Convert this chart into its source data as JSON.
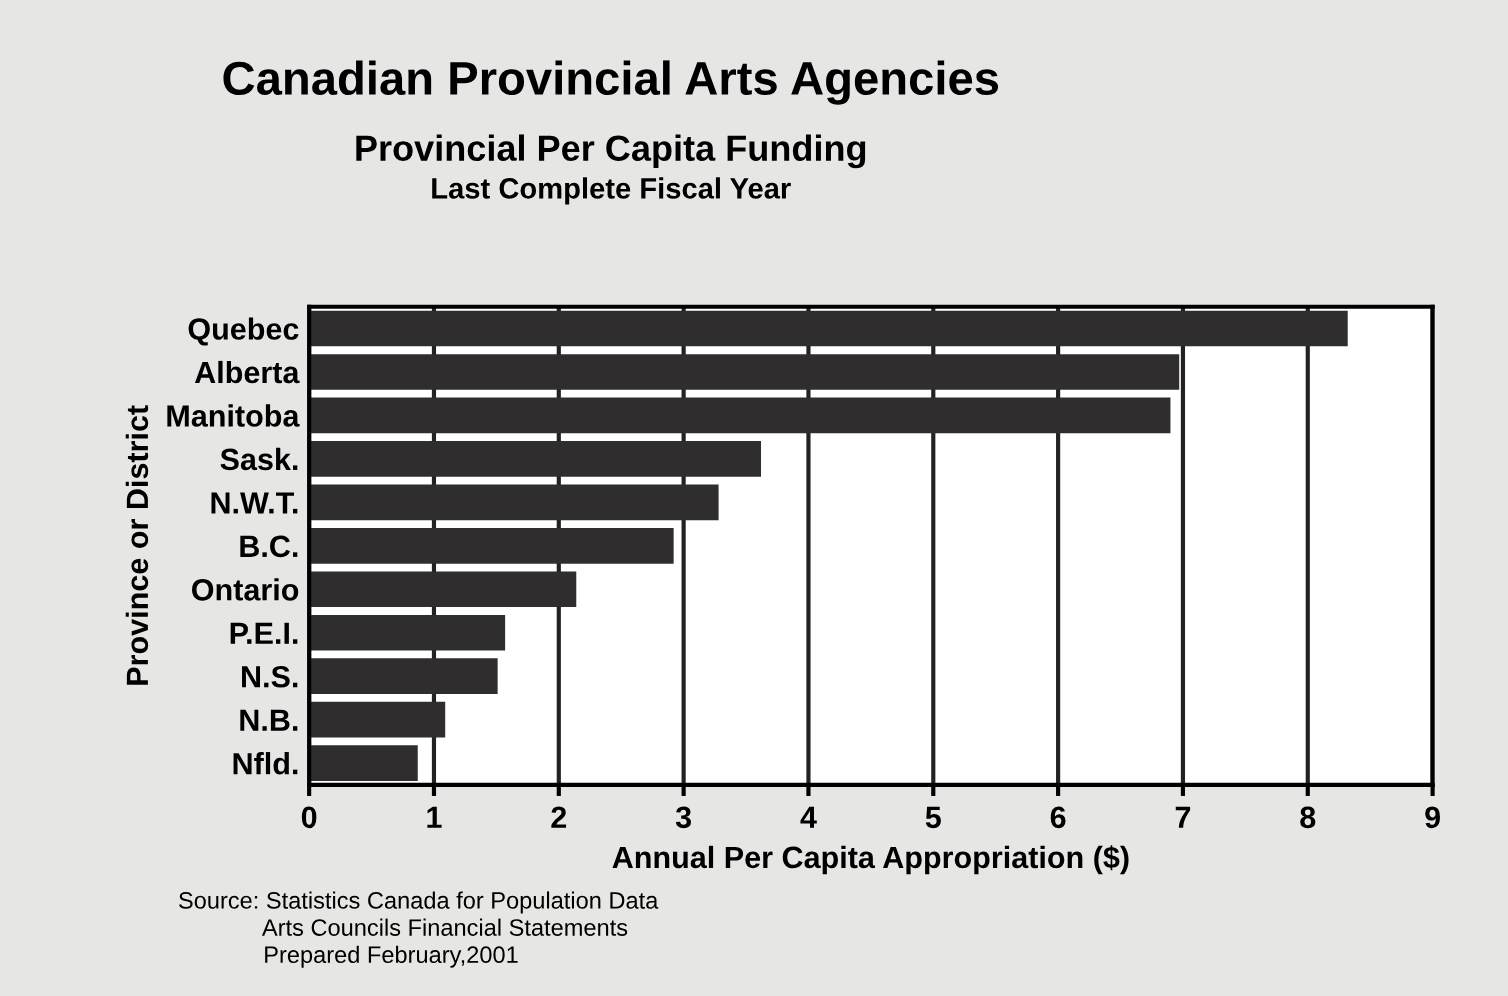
{
  "chart_data": {
    "type": "bar",
    "orientation": "horizontal",
    "title": "Canadian Provincial Arts Agencies",
    "subtitle": "Provincial Per Capita Funding\nLast Complete Fiscal Year",
    "xlabel": "Annual Per Capita Appropriation ($)",
    "ylabel": "Province or District",
    "categories": [
      "Quebec",
      "Alberta",
      "Manitoba",
      "Sask.",
      "N.W.T.",
      "B.C.",
      "Ontario",
      "P.E.I.",
      "N.S.",
      "N.B.",
      "Nfld."
    ],
    "values": [
      8.32,
      6.97,
      6.9,
      3.62,
      3.28,
      2.92,
      2.14,
      1.57,
      1.51,
      1.09,
      0.87
    ],
    "color": "#2f2d2d",
    "xlim": [
      0,
      9
    ],
    "xticks": [
      0,
      1,
      2,
      3,
      4,
      5,
      6,
      7,
      8,
      9
    ],
    "grid": "x",
    "annotations": [
      "Source: Statistics Canada for Population Data\n             Arts Councils Financial Statements\n             Prepared February,2001"
    ]
  }
}
